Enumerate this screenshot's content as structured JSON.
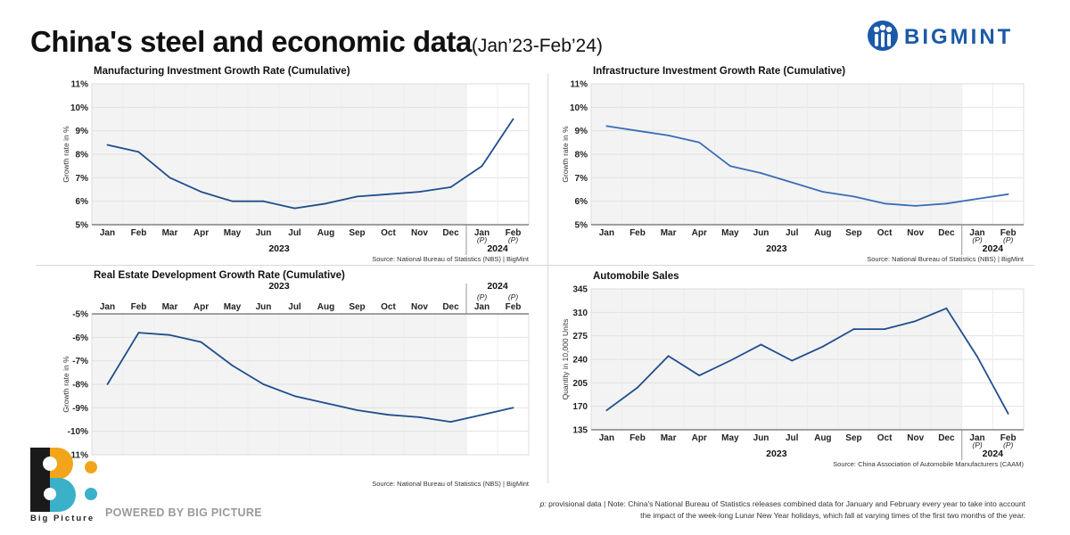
{
  "header": {
    "title_main": "China's steel and economic data",
    "title_period": "(Jan’23-Feb’24)",
    "brand": "BIGMINT"
  },
  "footer": {
    "brand_name": "Big Picture",
    "powered_by": "POWERED BY BIG PICTURE",
    "note_prefix": "p:",
    "note_text": " provisional data | Note: China's National Bureau of Statistics releases combined data for January and February every year to take into account",
    "note_text2": "the impact of the week-long Lunar New Year holidays, which fall at varying times of the first two months of the year."
  },
  "chart_data": [
    {
      "type": "line",
      "title": "Manufacturing Investment Growth Rate (Cumulative)",
      "ylabel": "Growth rate in %",
      "categories": [
        "Jan",
        "Feb",
        "Mar",
        "Apr",
        "May",
        "Jun",
        "Jul",
        "Aug",
        "Sep",
        "Oct",
        "Nov",
        "Dec",
        "Jan",
        "Feb"
      ],
      "provisional": [
        "",
        "",
        "",
        "",
        "",
        "",
        "",
        "",
        "",
        "",
        "",
        "",
        "(P)",
        "(P)"
      ],
      "years": [
        {
          "label": "2023",
          "from": 0,
          "to": 11
        },
        {
          "label": "2024",
          "from": 12,
          "to": 13
        }
      ],
      "values": [
        8.4,
        8.1,
        7.0,
        6.4,
        6.0,
        6.0,
        5.7,
        5.9,
        6.2,
        6.3,
        6.4,
        6.6,
        7.5,
        9.5
      ],
      "ylim": [
        5,
        11
      ],
      "yticks": [
        5,
        6,
        7,
        8,
        9,
        10,
        11
      ],
      "ytick_labels": [
        "5%",
        "6%",
        "7%",
        "8%",
        "9%",
        "10%",
        "11%"
      ],
      "x_axis": "bottom",
      "shaded_through": 11,
      "color": "#1f4e8c",
      "source": "Source: National Bureau of Statistics (NBS) | BigMint"
    },
    {
      "type": "line",
      "title": "Infrastructure Investment Growth Rate (Cumulative)",
      "ylabel": "Growth rate in %",
      "categories": [
        "Jan",
        "Feb",
        "Mar",
        "Apr",
        "May",
        "Jun",
        "Jul",
        "Aug",
        "Sep",
        "Oct",
        "Nov",
        "Dec",
        "Jan",
        "Feb"
      ],
      "provisional": [
        "",
        "",
        "",
        "",
        "",
        "",
        "",
        "",
        "",
        "",
        "",
        "",
        "(P)",
        "(P)"
      ],
      "years": [
        {
          "label": "2023",
          "from": 0,
          "to": 11
        },
        {
          "label": "2024",
          "from": 12,
          "to": 13
        }
      ],
      "values": [
        9.2,
        9.0,
        8.8,
        8.5,
        7.5,
        7.2,
        6.8,
        6.4,
        6.2,
        5.9,
        5.8,
        5.9,
        6.1,
        6.3
      ],
      "ylim": [
        5,
        11
      ],
      "yticks": [
        5,
        6,
        7,
        8,
        9,
        10,
        11
      ],
      "ytick_labels": [
        "5%",
        "6%",
        "7%",
        "8%",
        "9%",
        "10%",
        "11%"
      ],
      "x_axis": "bottom",
      "shaded_through": 11,
      "color": "#3a6db5",
      "source": "Source: National Bureau of Statistics (NBS) | BigMint"
    },
    {
      "type": "line",
      "title": "Real Estate Development Growth Rate (Cumulative)",
      "ylabel": "Growth rate in %",
      "categories": [
        "Jan",
        "Feb",
        "Mar",
        "Apr",
        "May",
        "Jun",
        "Jul",
        "Aug",
        "Sep",
        "Oct",
        "Nov",
        "Dec",
        "Jan",
        "Feb"
      ],
      "provisional": [
        "",
        "",
        "",
        "",
        "",
        "",
        "",
        "",
        "",
        "",
        "",
        "",
        "(P)",
        "(P)"
      ],
      "years": [
        {
          "label": "2023",
          "from": 0,
          "to": 11
        },
        {
          "label": "2024",
          "from": 12,
          "to": 13
        }
      ],
      "values": [
        -8.0,
        -5.8,
        -5.9,
        -6.2,
        -7.2,
        -8.0,
        -8.5,
        -8.8,
        -9.1,
        -9.3,
        -9.4,
        -9.6,
        -9.3,
        -9.0
      ],
      "ylim": [
        -11,
        -5
      ],
      "yticks": [
        -11,
        -10,
        -9,
        -8,
        -7,
        -6,
        -5
      ],
      "ytick_labels": [
        "-11%",
        "-10%",
        "-9%",
        "-8%",
        "-7%",
        "-6%",
        "-5%"
      ],
      "x_axis": "top",
      "shaded_through": 11,
      "color": "#1f4e8c",
      "source": "Source: National Bureau of Statistics (NBS) | BigMint"
    },
    {
      "type": "line",
      "title": "Automobile Sales",
      "ylabel": "Quantity in 10,000 Units",
      "categories": [
        "Jan",
        "Feb",
        "Mar",
        "Apr",
        "May",
        "Jun",
        "Jul",
        "Aug",
        "Sep",
        "Oct",
        "Nov",
        "Dec",
        "Jan",
        "Feb"
      ],
      "provisional": [
        "",
        "",
        "",
        "",
        "",
        "",
        "",
        "",
        "",
        "",
        "",
        "",
        "(P)",
        "(P)"
      ],
      "years": [
        {
          "label": "2023",
          "from": 0,
          "to": 11
        },
        {
          "label": "2024",
          "from": 12,
          "to": 13
        }
      ],
      "values": [
        164,
        198,
        245,
        216,
        238,
        262,
        238,
        259,
        285,
        285,
        297,
        316,
        244,
        159
      ],
      "ylim": [
        135,
        345
      ],
      "yticks": [
        135,
        170,
        205,
        240,
        275,
        310,
        345
      ],
      "ytick_labels": [
        "135",
        "170",
        "205",
        "240",
        "275",
        "310",
        "345"
      ],
      "x_axis": "bottom",
      "shaded_through": 11,
      "color": "#1f4e8c",
      "source": "Source: China Association of Automobile Manufacturers (CAAM)"
    }
  ]
}
